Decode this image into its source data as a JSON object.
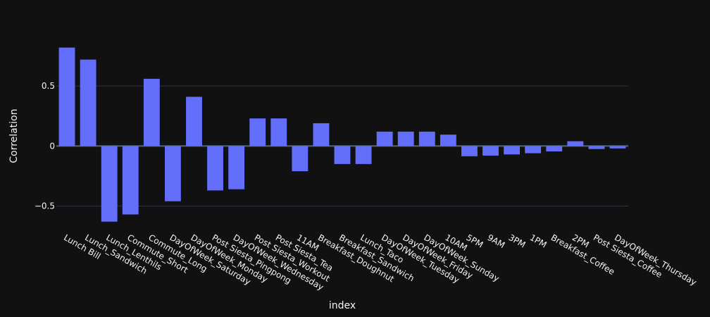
{
  "chart_data": {
    "type": "bar",
    "xlabel": "index",
    "ylabel": "Correlation",
    "ylim": [
      -0.72,
      0.97
    ],
    "yticks": [
      -0.5,
      0,
      0.5
    ],
    "ytick_labels": [
      "−0.5",
      "0",
      "0.5"
    ],
    "grid": true,
    "bar_color": "#636efa",
    "categories": [
      "Lunch Bill",
      "Lunch_Sandwich",
      "Lunch_Lenthils",
      "Commute_Short",
      "Commute_Long",
      "DayOfWeek_Saturday",
      "DayOfWeek_Monday",
      "Post Siesta_Pingpong",
      "DayOfWeek_Wednesday",
      "Post Siesta_Workout",
      "Post Siesta_Tea",
      "11AM",
      "Breakfast_Doughnut",
      "Breakfast_Sandwich",
      "Lunch_Taco",
      "DayOfWeek_Tuesday",
      "DayOfWeek_Friday",
      "DayOfWeek_Sunday",
      "10AM",
      "5PM",
      "9AM",
      "3PM",
      "1PM",
      "Breakfast_Coffee",
      "2PM",
      "Post Siesta_Coffee",
      "DayOfWeek_Thursday"
    ],
    "values": [
      0.82,
      0.72,
      -0.63,
      -0.57,
      0.56,
      -0.46,
      0.41,
      -0.37,
      -0.36,
      0.23,
      0.23,
      -0.21,
      0.19,
      -0.15,
      -0.15,
      0.12,
      0.12,
      0.12,
      0.095,
      -0.085,
      -0.08,
      -0.07,
      -0.06,
      -0.045,
      0.04,
      -0.025,
      -0.02
    ]
  }
}
